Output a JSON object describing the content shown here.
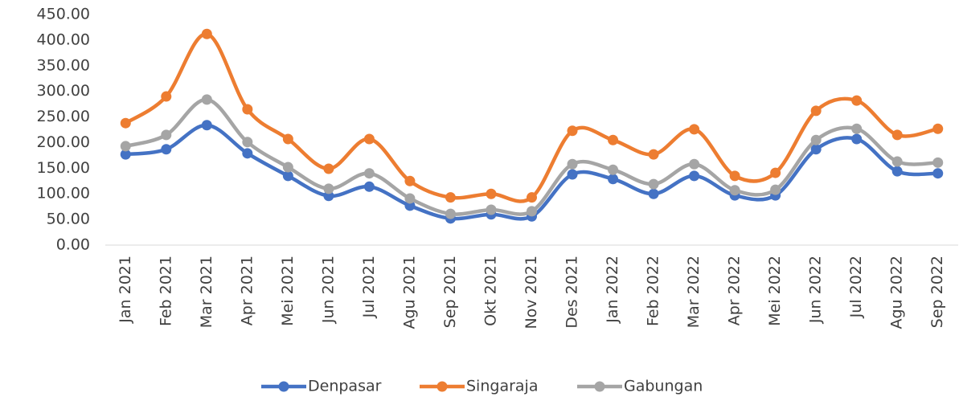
{
  "chart_data": {
    "type": "line",
    "categories": [
      "Jan 2021",
      "Feb 2021",
      "Mar 2021",
      "Apr 2021",
      "Mei 2021",
      "Jun 2021",
      "Jul 2021",
      "Agu 2021",
      "Sep 2021",
      "Okt 2021",
      "Nov 2021",
      "Des 2021",
      "Jan 2022",
      "Feb 2022",
      "Mar 2022",
      "Apr 2022",
      "Mei 2022",
      "Jun 2022",
      "Jul 2022",
      "Agu 2022",
      "Sep 2022"
    ],
    "series": [
      {
        "name": "Denpasar",
        "color": "#4472c4",
        "values": [
          177,
          187,
          234,
          179,
          135,
          96,
          114,
          77,
          52,
          60,
          56,
          138,
          129,
          100,
          135,
          97,
          97,
          187,
          207,
          144,
          140
        ]
      },
      {
        "name": "Singaraja",
        "color": "#ed7d31",
        "values": [
          238,
          290,
          412,
          265,
          207,
          149,
          207,
          125,
          93,
          100,
          93,
          223,
          205,
          177,
          226,
          135,
          141,
          262,
          282,
          215,
          227
        ]
      },
      {
        "name": "Gabungan",
        "color": "#a5a5a5",
        "values": [
          193,
          215,
          284,
          201,
          152,
          110,
          140,
          91,
          61,
          69,
          66,
          158,
          147,
          119,
          158,
          107,
          108,
          205,
          227,
          163,
          161
        ]
      }
    ],
    "ylim": [
      0,
      450
    ],
    "yticks": [
      {
        "value": 0,
        "label": "0.00"
      },
      {
        "value": 50,
        "label": "50.00"
      },
      {
        "value": 100,
        "label": "100.00"
      },
      {
        "value": 150,
        "label": "150.00"
      },
      {
        "value": 200,
        "label": "200.00"
      },
      {
        "value": 250,
        "label": "250.00"
      },
      {
        "value": 300,
        "label": "300.00"
      },
      {
        "value": 350,
        "label": "350.00"
      },
      {
        "value": 400,
        "label": "400.00"
      },
      {
        "value": 450,
        "label": "450.00"
      }
    ],
    "grid": false,
    "legend": "bottom"
  }
}
